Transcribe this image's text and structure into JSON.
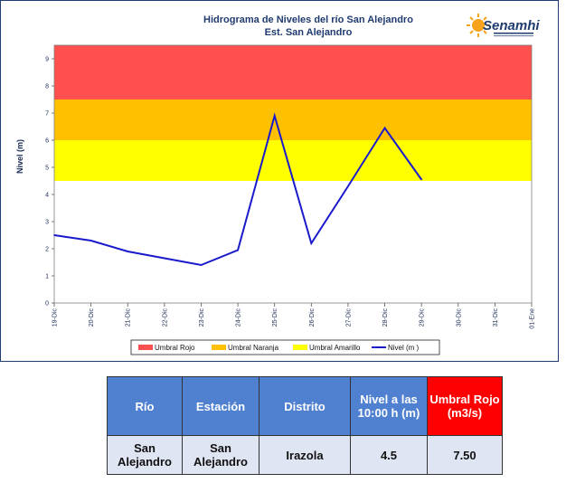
{
  "chart_data": {
    "type": "line",
    "title": "Hidrograma de Niveles del río San Alejandro",
    "subtitle": "Est. San Alejandro",
    "ylabel": "Nivel (m)",
    "xlabel": "",
    "ylim": [
      0,
      9.5
    ],
    "yticks": [
      0,
      1,
      2,
      3,
      4,
      5,
      6,
      7,
      8,
      9
    ],
    "categories": [
      "19-Dic",
      "20-Dic",
      "21-Dic",
      "22-Dic",
      "23-Dic",
      "24-Dic",
      "25-Dic",
      "26-Dic",
      "27-Dic",
      "28-Dic",
      "29-Dic",
      "30-Dic",
      "31-Dic",
      "01-Ene"
    ],
    "bands": [
      {
        "name": "Umbral Rojo",
        "from": 7.5,
        "to": 9.5,
        "color": "#ff5050"
      },
      {
        "name": "Umbral Naranja",
        "from": 6.0,
        "to": 7.5,
        "color": "#ffc000"
      },
      {
        "name": "Umbral Amarillo",
        "from": 4.5,
        "to": 6.0,
        "color": "#ffff00"
      }
    ],
    "series": [
      {
        "name": "Nivel (m",
        "color": "#1a1acc",
        "values": [
          2.5,
          2.3,
          1.9,
          1.65,
          1.4,
          1.95,
          6.9,
          2.2,
          4.3,
          6.45,
          4.55,
          null,
          null,
          null
        ]
      }
    ],
    "legend_position": "bottom",
    "grid": false
  },
  "logo": {
    "brand": "Senamhi",
    "watermark": "Senamhi"
  },
  "table": {
    "headers": [
      "Río",
      "Estación",
      "Distrito",
      "Nivel a las 10:00 h (m)",
      "Umbral Rojo (m3/s)"
    ],
    "row": [
      "San Alejandro",
      "San Alejandro",
      "Irazola",
      "4.5",
      "7.50"
    ]
  }
}
